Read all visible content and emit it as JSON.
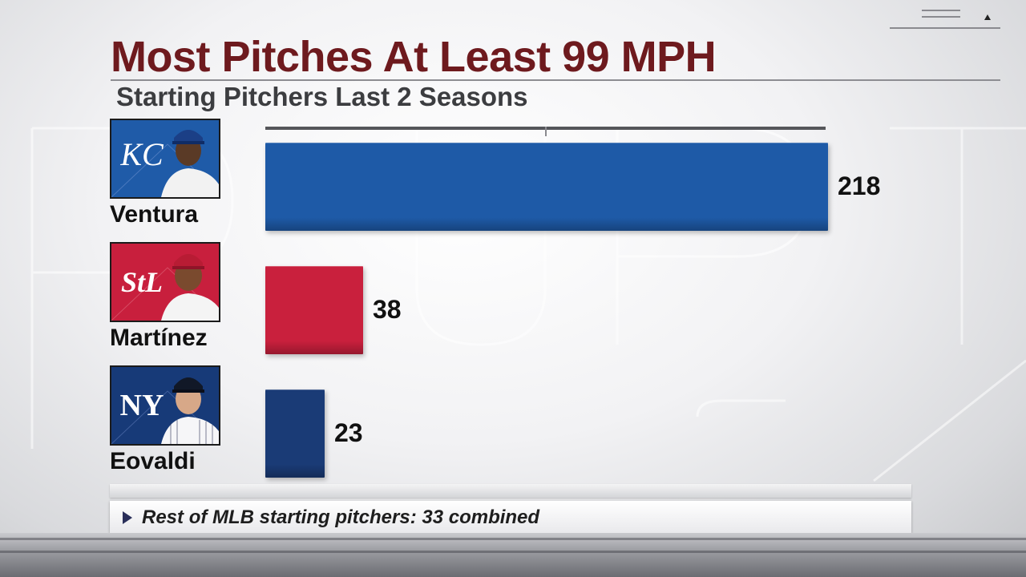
{
  "title": "Most Pitches At Least 99 MPH",
  "subtitle": "Starting Pitchers Last 2 Seasons",
  "footer_note": "Rest of MLB starting pitchers: 33 combined",
  "team_logos": {
    "royals": "KC",
    "cardinals": "StL",
    "yankees": "NY"
  },
  "colors": {
    "title": "#6e1a1e",
    "royals": "#1e5aa7",
    "cardinals": "#c9203d",
    "yankees": "#1a3b76"
  },
  "chart_data": {
    "type": "bar",
    "orientation": "horizontal",
    "title": "Most Pitches At Least 99 MPH",
    "subtitle": "Starting Pitchers Last 2 Seasons",
    "categories": [
      "Ventura",
      "Martínez",
      "Eovaldi"
    ],
    "values": [
      218,
      38,
      23
    ],
    "labels": [
      "218",
      "38",
      "23"
    ],
    "team": [
      "Royals",
      "Cardinals",
      "Yankees"
    ],
    "bar_colors": [
      "#1e5aa7",
      "#c9203d",
      "#1a3b76"
    ],
    "xlim": [
      0,
      218
    ],
    "grid": false,
    "legend": "none"
  }
}
